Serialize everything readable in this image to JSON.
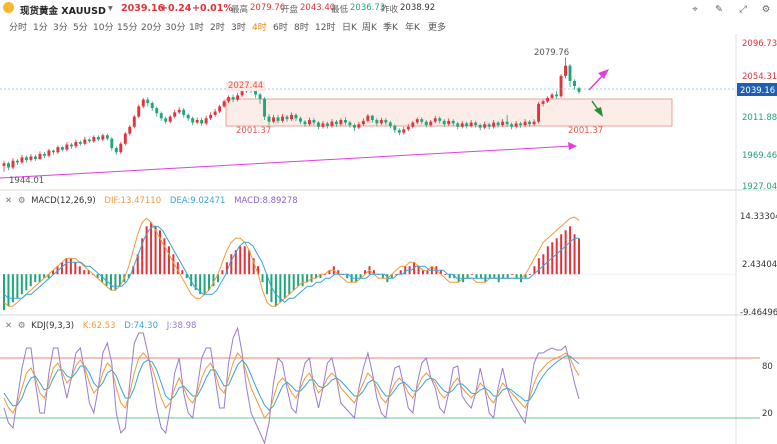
{
  "header": {
    "icon": "gold-icon",
    "name": "现货黄金 XAUUSD",
    "price": "2039.16",
    "change": "+0.24",
    "change_pct": "+0.01%",
    "high_label": "最高",
    "high": "2079.76",
    "open_label": "开盘",
    "open": "2043.40",
    "low_label": "最低",
    "low": "2036.73",
    "prev_label": "昨收",
    "prev": "2038.92",
    "up_color": "#e0333a",
    "down_color": "#1fa67a"
  },
  "timeframes": [
    "分时",
    "1分",
    "3分",
    "5分",
    "10分",
    "15分",
    "20分",
    "30分",
    "1时",
    "2时",
    "3时",
    "4时",
    "6时",
    "8时",
    "12时",
    "日K",
    "周K",
    "季K",
    "年K",
    "更多"
  ],
  "active_timeframe": "4时",
  "toolbar_icons": [
    "drawing-icon",
    "edit-icon",
    "fullscreen-icon",
    "settings-icon"
  ],
  "price_axis": {
    "ticks": [
      "2096.73",
      "2054.31",
      "2011.88",
      "1969.46",
      "1927.04"
    ],
    "current": "2039.16",
    "current_bg": "#1f5fb3"
  },
  "price_annotations": {
    "peak": "2079.76",
    "box_top": "2027.44",
    "box_bottom_left": "2001.37",
    "box_bottom_right": "2001.37",
    "low": "1944.01"
  },
  "macd": {
    "title": "MACD(12,26,9)",
    "dif_label": "DIF:13.47110",
    "dea_label": "DEA:9.02471",
    "macd_label": "MACD:8.89278",
    "dif_color": "#f09a3c",
    "dea_color": "#3aa3d8",
    "macd_color": "#8a63d2",
    "ticks": [
      "14.33304",
      "2.43404",
      "-9.46496"
    ]
  },
  "kdj": {
    "title": "KDJ(9,3,3)",
    "k_label": "K:62.53",
    "d_label": "D:74.30",
    "j_label": "J:38.98",
    "k_color": "#f09a3c",
    "d_color": "#3aa3d8",
    "j_color": "#9a7bd6",
    "ticks": [
      "80",
      "20"
    ]
  },
  "chart_data": {
    "type": "candlestick",
    "price_range": [
      1927.04,
      2096.73
    ],
    "candles": [
      [
        1952,
        1955,
        1945,
        1958
      ],
      [
        1955,
        1950,
        1947,
        1957
      ],
      [
        1950,
        1958,
        1948,
        1961
      ],
      [
        1958,
        1956,
        1953,
        1960
      ],
      [
        1956,
        1962,
        1954,
        1965
      ],
      [
        1962,
        1959,
        1956,
        1964
      ],
      [
        1959,
        1963,
        1957,
        1966
      ],
      [
        1963,
        1960,
        1958,
        1965
      ],
      [
        1960,
        1966,
        1959,
        1969
      ],
      [
        1966,
        1964,
        1961,
        1968
      ],
      [
        1964,
        1970,
        1962,
        1972
      ],
      [
        1970,
        1968,
        1965,
        1971
      ],
      [
        1968,
        1974,
        1966,
        1976
      ],
      [
        1974,
        1971,
        1969,
        1975
      ],
      [
        1971,
        1977,
        1969,
        1980
      ],
      [
        1977,
        1975,
        1972,
        1979
      ],
      [
        1975,
        1980,
        1973,
        1983
      ],
      [
        1980,
        1978,
        1976,
        1982
      ],
      [
        1978,
        1983,
        1976,
        1986
      ],
      [
        1983,
        1981,
        1979,
        1985
      ],
      [
        1981,
        1986,
        1979,
        1988
      ],
      [
        1986,
        1983,
        1981,
        1988
      ],
      [
        1983,
        1988,
        1981,
        1990
      ],
      [
        1988,
        1984,
        1982,
        1990
      ],
      [
        1984,
        1973,
        1970,
        1986
      ],
      [
        1973,
        1968,
        1965,
        1975
      ],
      [
        1968,
        1978,
        1966,
        1980
      ],
      [
        1978,
        1990,
        1976,
        1992
      ],
      [
        1990,
        1998,
        1988,
        2000
      ],
      [
        1998,
        2010,
        1996,
        2012
      ],
      [
        2010,
        2022,
        2008,
        2024
      ],
      [
        2022,
        2030,
        2020,
        2032
      ],
      [
        2030,
        2026,
        2022,
        2033
      ],
      [
        2026,
        2020,
        2017,
        2028
      ],
      [
        2020,
        2014,
        2010,
        2022
      ],
      [
        2014,
        2008,
        2005,
        2016
      ],
      [
        2008,
        2004,
        2001,
        2010
      ],
      [
        2004,
        2010,
        2002,
        2012
      ],
      [
        2010,
        2015,
        2008,
        2018
      ],
      [
        2015,
        2018,
        2013,
        2021
      ],
      [
        2018,
        2012,
        2009,
        2020
      ],
      [
        2012,
        2008,
        2005,
        2014
      ],
      [
        2008,
        2003,
        2000,
        2010
      ],
      [
        2003,
        2006,
        2001,
        2009
      ],
      [
        2006,
        2002,
        1999,
        2009
      ],
      [
        2002,
        2008,
        2000,
        2011
      ],
      [
        2008,
        2012,
        2006,
        2015
      ],
      [
        2012,
        2016,
        2010,
        2019
      ],
      [
        2016,
        2022,
        2014,
        2024
      ],
      [
        2022,
        2028,
        2020,
        2030
      ],
      [
        2028,
        2033,
        2026,
        2035
      ],
      [
        2033,
        2030,
        2027,
        2036
      ],
      [
        2030,
        2035,
        2028,
        2038
      ],
      [
        2035,
        2040,
        2033,
        2043
      ],
      [
        2040,
        2047,
        2038,
        2049
      ],
      [
        2047,
        2042,
        2038,
        2050
      ],
      [
        2042,
        2036,
        2032,
        2044
      ],
      [
        2036,
        2031,
        2025,
        2038
      ],
      [
        2031,
        2010,
        2006,
        2033
      ],
      [
        2010,
        2004,
        2000,
        2013
      ],
      [
        2004,
        2009,
        2002,
        2012
      ],
      [
        2009,
        2005,
        2002,
        2012
      ],
      [
        2005,
        2010,
        2003,
        2013
      ],
      [
        2010,
        2007,
        2004,
        2012
      ],
      [
        2007,
        2012,
        2005,
        2015
      ],
      [
        2012,
        2008,
        2005,
        2014
      ],
      [
        2008,
        2004,
        2001,
        2010
      ],
      [
        2004,
        2001,
        1998,
        2006
      ],
      [
        2001,
        2006,
        1999,
        2009
      ],
      [
        2006,
        2003,
        2000,
        2008
      ],
      [
        2003,
        1998,
        1995,
        2005
      ],
      [
        1998,
        2002,
        1996,
        2005
      ],
      [
        2002,
        1999,
        1996,
        2004
      ],
      [
        1999,
        2004,
        1997,
        2007
      ],
      [
        2004,
        2001,
        1998,
        2006
      ],
      [
        2001,
        2006,
        1999,
        2008
      ],
      [
        2006,
        2003,
        2000,
        2009
      ],
      [
        2003,
        2000,
        1997,
        2005
      ],
      [
        2000,
        1997,
        1993,
        2002
      ],
      [
        1997,
        2001,
        1995,
        2004
      ],
      [
        2001,
        2005,
        1999,
        2008
      ],
      [
        2005,
        2011,
        2003,
        2013
      ],
      [
        2011,
        2006,
        2003,
        2012
      ],
      [
        2006,
        2002,
        1999,
        2008
      ],
      [
        2002,
        2006,
        2000,
        2009
      ],
      [
        2006,
        2003,
        2000,
        2008
      ],
      [
        2003,
        1999,
        1996,
        2005
      ],
      [
        1999,
        1994,
        1991,
        2001
      ],
      [
        1994,
        1991,
        1988,
        1996
      ],
      [
        1991,
        1995,
        1989,
        1998
      ],
      [
        1995,
        1998,
        1993,
        2001
      ],
      [
        1998,
        2003,
        1996,
        2005
      ],
      [
        2003,
        2007,
        2001,
        2009
      ],
      [
        2007,
        2004,
        2001,
        2009
      ],
      [
        2004,
        2000,
        1997,
        2006
      ],
      [
        2000,
        2004,
        1998,
        2006
      ],
      [
        2004,
        2008,
        2002,
        2011
      ],
      [
        2008,
        2005,
        2002,
        2010
      ],
      [
        2005,
        2001,
        1998,
        2007
      ],
      [
        2001,
        2005,
        1999,
        2008
      ],
      [
        2005,
        2002,
        1999,
        2007
      ],
      [
        2002,
        1998,
        1995,
        2004
      ],
      [
        1998,
        2002,
        1996,
        2005
      ],
      [
        2002,
        1999,
        1996,
        2004
      ],
      [
        1999,
        2003,
        1997,
        2006
      ],
      [
        2003,
        2000,
        1997,
        2005
      ],
      [
        2000,
        1997,
        1994,
        2002
      ],
      [
        1997,
        2001,
        1995,
        2004
      ],
      [
        2001,
        1998,
        1995,
        2003
      ],
      [
        1998,
        2003,
        1996,
        2006
      ],
      [
        2003,
        2000,
        1997,
        2005
      ],
      [
        2000,
        2004,
        1998,
        2007
      ],
      [
        2004,
        2001,
        1998,
        2012
      ],
      [
        2001,
        1998,
        1995,
        2003
      ],
      [
        1998,
        2002,
        1996,
        2005
      ],
      [
        2002,
        2000,
        1997,
        2004
      ],
      [
        2000,
        2004,
        1998,
        2007
      ],
      [
        2004,
        2001,
        1998,
        2006
      ],
      [
        2001,
        2004,
        1999,
        2007
      ],
      [
        2004,
        2025,
        2002,
        2027
      ],
      [
        2025,
        2028,
        2022,
        2030
      ],
      [
        2028,
        2032,
        2026,
        2034
      ],
      [
        2032,
        2036,
        2030,
        2038
      ],
      [
        2036,
        2034,
        2031,
        2040
      ],
      [
        2034,
        2058,
        2032,
        2060
      ],
      [
        2058,
        2070,
        2055,
        2079.76
      ],
      [
        2070,
        2052,
        2045,
        2072
      ],
      [
        2052,
        2046,
        2042,
        2054
      ],
      [
        2043.4,
        2039.16,
        2036.73,
        2045
      ]
    ],
    "macd_hist": [
      -9,
      -8,
      -7,
      -6,
      -5,
      -4,
      -3,
      -2,
      -2,
      -1,
      -1,
      1,
      2,
      3,
      4,
      4,
      3,
      2,
      1,
      1,
      0,
      -1,
      -2,
      -3,
      -4,
      -4,
      -3,
      -2,
      -1,
      2,
      5,
      9,
      12,
      13,
      12,
      11,
      9,
      7,
      5,
      3,
      1,
      -1,
      -3,
      -4,
      -5,
      -5,
      -4,
      -3,
      -2,
      1,
      3,
      5,
      6,
      7,
      7,
      6,
      4,
      2,
      -2,
      -5,
      -7,
      -8,
      -7,
      -6,
      -5,
      -4,
      -3,
      -3,
      -2,
      -2,
      -1,
      -1,
      0,
      1,
      2,
      1,
      0,
      -1,
      -2,
      -2,
      -1,
      1,
      2,
      1,
      0,
      -1,
      -2,
      -1,
      0,
      1,
      2,
      2,
      3,
      2,
      1,
      1,
      2,
      2,
      1,
      0,
      -1,
      -1,
      -2,
      -2,
      -1,
      0,
      -1,
      -1,
      -2,
      -1,
      -1,
      -2,
      -1,
      -1,
      0,
      -1,
      -2,
      -1,
      0,
      2,
      4,
      5,
      7,
      8,
      9,
      10,
      11,
      12,
      10,
      9
    ],
    "macd_dif": [
      -7,
      -8,
      -8,
      -7,
      -6,
      -5,
      -4,
      -3,
      -2,
      -1,
      0,
      1,
      2,
      3,
      4,
      4,
      4,
      3,
      2,
      1,
      0,
      -1,
      -2,
      -3,
      -4,
      -4,
      -3,
      -1,
      2,
      6,
      10,
      13,
      14,
      13,
      11,
      9,
      7,
      5,
      3,
      1,
      -1,
      -3,
      -5,
      -6,
      -6,
      -5,
      -4,
      -2,
      0,
      3,
      6,
      8,
      9,
      9,
      8,
      6,
      3,
      0,
      -4,
      -7,
      -8,
      -8,
      -7,
      -6,
      -5,
      -4,
      -3,
      -2,
      -2,
      -1,
      -1,
      0,
      0,
      1,
      1,
      0,
      -1,
      -2,
      -2,
      -2,
      -1,
      0,
      1,
      0,
      -1,
      -1,
      -1,
      0,
      1,
      2,
      2,
      3,
      3,
      2,
      1,
      1,
      2,
      1,
      0,
      -1,
      -2,
      -2,
      -2,
      -1,
      -1,
      -1,
      -2,
      -2,
      -2,
      -1,
      -1,
      -1,
      -1,
      -1,
      -1,
      -1,
      -1,
      0,
      2,
      4,
      6,
      8,
      9,
      10,
      11,
      12,
      13,
      14,
      14.3,
      13.47
    ],
    "macd_dea": [
      -5,
      -6,
      -6,
      -6,
      -6,
      -5,
      -5,
      -4,
      -3,
      -2,
      -1,
      0,
      1,
      2,
      3,
      3,
      3,
      3,
      2,
      2,
      1,
      0,
      -1,
      -2,
      -3,
      -3,
      -3,
      -2,
      0,
      3,
      6,
      9,
      11,
      12,
      12,
      11,
      9,
      7,
      5,
      3,
      1,
      -1,
      -3,
      -4,
      -5,
      -5,
      -5,
      -4,
      -2,
      0,
      3,
      5,
      7,
      8,
      8,
      7,
      5,
      3,
      0,
      -3,
      -5,
      -6,
      -7,
      -6,
      -6,
      -5,
      -4,
      -3,
      -3,
      -2,
      -2,
      -1,
      -1,
      0,
      0,
      0,
      0,
      -1,
      -1,
      -1,
      -1,
      0,
      0,
      0,
      0,
      -1,
      -1,
      0,
      0,
      1,
      1,
      2,
      2,
      2,
      1,
      1,
      1,
      1,
      0,
      0,
      -1,
      -1,
      -1,
      -1,
      -1,
      -1,
      -1,
      -1,
      -1,
      -1,
      -1,
      -1,
      -1,
      -1,
      -1,
      -1,
      -1,
      0,
      1,
      2,
      3,
      4,
      5,
      6,
      7,
      8,
      9,
      9.02
    ],
    "kdj_k": [
      40,
      30,
      25,
      35,
      50,
      65,
      70,
      60,
      45,
      40,
      55,
      70,
      75,
      65,
      55,
      60,
      72,
      78,
      70,
      55,
      45,
      50,
      65,
      75,
      70,
      50,
      35,
      30,
      45,
      65,
      80,
      85,
      80,
      70,
      55,
      40,
      30,
      35,
      50,
      60,
      50,
      40,
      35,
      45,
      60,
      70,
      75,
      65,
      50,
      45,
      60,
      75,
      85,
      80,
      65,
      50,
      40,
      30,
      20,
      25,
      40,
      55,
      60,
      55,
      45,
      40,
      50,
      60,
      65,
      55,
      45,
      50,
      60,
      65,
      60,
      50,
      45,
      40,
      35,
      45,
      55,
      65,
      60,
      50,
      40,
      35,
      45,
      55,
      60,
      55,
      45,
      40,
      50,
      60,
      65,
      60,
      55,
      45,
      40,
      45,
      55,
      60,
      50,
      45,
      40,
      45,
      55,
      50,
      40,
      35,
      45,
      55,
      50,
      45,
      40,
      35,
      30,
      40,
      55,
      65,
      70,
      75,
      78,
      80,
      82,
      85,
      80,
      70,
      62.53
    ],
    "kdj_d": [
      45,
      38,
      32,
      33,
      40,
      52,
      60,
      62,
      55,
      48,
      50,
      60,
      68,
      68,
      62,
      60,
      65,
      72,
      72,
      65,
      55,
      50,
      55,
      65,
      68,
      62,
      50,
      40,
      40,
      50,
      65,
      75,
      78,
      76,
      68,
      55,
      42,
      38,
      42,
      50,
      52,
      47,
      42,
      42,
      50,
      60,
      68,
      68,
      60,
      52,
      53,
      63,
      73,
      78,
      73,
      63,
      52,
      42,
      33,
      28,
      32,
      42,
      52,
      56,
      52,
      47,
      47,
      52,
      58,
      58,
      52,
      50,
      53,
      58,
      60,
      57,
      52,
      47,
      42,
      42,
      47,
      55,
      58,
      55,
      48,
      42,
      42,
      48,
      54,
      56,
      52,
      47,
      47,
      52,
      58,
      60,
      58,
      52,
      47,
      45,
      48,
      54,
      54,
      50,
      45,
      44,
      48,
      50,
      47,
      42,
      42,
      48,
      50,
      48,
      44,
      41,
      37,
      38,
      45,
      55,
      62,
      68,
      72,
      76,
      79,
      82,
      82,
      78,
      74.3
    ],
    "kdj_j": [
      30,
      15,
      10,
      40,
      70,
      90,
      90,
      55,
      25,
      25,
      65,
      90,
      90,
      60,
      40,
      60,
      85,
      90,
      65,
      35,
      25,
      50,
      85,
      95,
      75,
      25,
      5,
      10,
      55,
      95,
      105,
      105,
      85,
      60,
      30,
      10,
      5,
      30,
      65,
      80,
      45,
      25,
      20,
      50,
      80,
      90,
      90,
      60,
      30,
      30,
      75,
      100,
      110,
      85,
      50,
      25,
      15,
      5,
      -5,
      15,
      55,
      80,
      75,
      50,
      30,
      25,
      55,
      75,
      80,
      50,
      30,
      50,
      75,
      80,
      60,
      35,
      30,
      25,
      20,
      50,
      70,
      85,
      65,
      40,
      25,
      20,
      50,
      70,
      72,
      52,
      30,
      25,
      55,
      75,
      80,
      60,
      50,
      30,
      25,
      45,
      70,
      72,
      42,
      35,
      30,
      45,
      70,
      50,
      25,
      20,
      50,
      70,
      50,
      38,
      30,
      22,
      15,
      45,
      75,
      85,
      85,
      88,
      90,
      88,
      88,
      92,
      75,
      55,
      38.98
    ]
  }
}
